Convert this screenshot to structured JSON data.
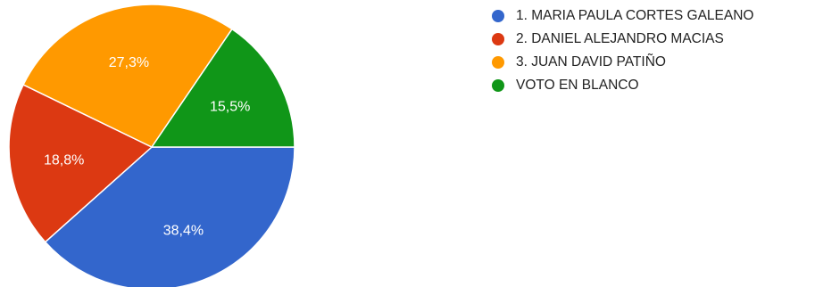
{
  "chart_data": {
    "type": "pie",
    "slices": [
      {
        "label": "1. MARIA PAULA CORTES GALEANO",
        "value": 38.4,
        "display": "38,4%",
        "color": "#3366cc"
      },
      {
        "label": "2. DANIEL ALEJANDRO MACIAS",
        "value": 18.8,
        "display": "18,8%",
        "color": "#dc3912"
      },
      {
        "label": "3. JUAN DAVID PATIÑO",
        "value": 27.3,
        "display": "27,3%",
        "color": "#ff9900"
      },
      {
        "label": "VOTO EN BLANCO",
        "value": 15.5,
        "display": "15,5%",
        "color": "#109618"
      }
    ],
    "legend_position": "right"
  }
}
